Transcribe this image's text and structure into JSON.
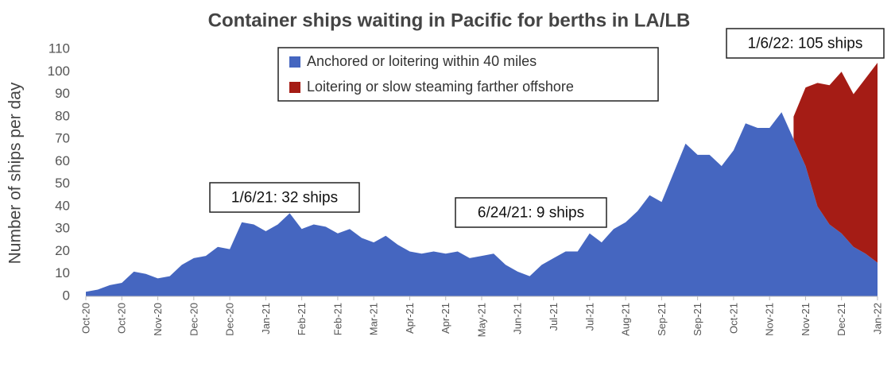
{
  "chart_data": {
    "type": "stacked_area",
    "title": "Container ships waiting in Pacific for berths in LA/LB",
    "y_label": "Number of ships per day",
    "categories": [
      "Oct-20",
      null,
      null,
      "Oct-20",
      null,
      null,
      "Nov-20",
      null,
      null,
      "Dec-20",
      null,
      null,
      "Dec-20",
      null,
      null,
      "Jan-21",
      null,
      null,
      "Feb-21",
      null,
      null,
      "Feb-21",
      null,
      null,
      "Mar-21",
      null,
      null,
      "Apr-21",
      null,
      null,
      "Apr-21",
      null,
      null,
      "May-21",
      null,
      null,
      "Jun-21",
      null,
      null,
      "Jul-21",
      null,
      null,
      "Jul-21",
      null,
      null,
      "Aug-21",
      null,
      null,
      "Sep-21",
      null,
      null,
      "Sep-21",
      null,
      null,
      "Oct-21",
      null,
      null,
      "Nov-21",
      null,
      null,
      "Nov-21",
      null,
      null,
      "Dec-21",
      null,
      null,
      "Jan-22"
    ],
    "series": [
      {
        "name": "Anchored or loitering within 40 miles",
        "color": "#4566c0",
        "values": [
          2,
          3,
          5,
          6,
          11,
          10,
          8,
          9,
          14,
          17,
          18,
          22,
          21,
          33,
          32,
          29,
          32,
          37,
          30,
          32,
          31,
          28,
          30,
          26,
          24,
          27,
          23,
          20,
          19,
          20,
          19,
          20,
          17,
          18,
          19,
          14,
          11,
          9,
          14,
          17,
          20,
          20,
          28,
          24,
          30,
          33,
          38,
          45,
          42,
          55,
          68,
          63,
          63,
          58,
          65,
          77,
          75,
          75,
          82,
          70,
          58,
          40,
          32,
          28,
          22,
          19,
          15
        ]
      },
      {
        "name": "Loitering or slow steaming farther offshore",
        "color": "#a51c15",
        "values": [
          null,
          null,
          null,
          null,
          null,
          null,
          null,
          null,
          null,
          null,
          null,
          null,
          null,
          null,
          null,
          null,
          null,
          null,
          null,
          null,
          null,
          null,
          null,
          null,
          null,
          null,
          null,
          null,
          null,
          null,
          null,
          null,
          null,
          null,
          null,
          null,
          null,
          null,
          null,
          null,
          null,
          null,
          null,
          null,
          null,
          null,
          null,
          null,
          null,
          null,
          null,
          null,
          null,
          null,
          null,
          null,
          null,
          null,
          null,
          10,
          35,
          55,
          62,
          72,
          68,
          78,
          89
        ]
      }
    ],
    "annotations": [
      "1/6/21: 32 ships",
      "6/24/21: 9 ships",
      "1/6/22: 105 ships"
    ],
    "ylim": [
      0,
      110
    ],
    "yticks": [
      0,
      10,
      20,
      30,
      40,
      50,
      60,
      70,
      80,
      90,
      100,
      110
    ]
  }
}
